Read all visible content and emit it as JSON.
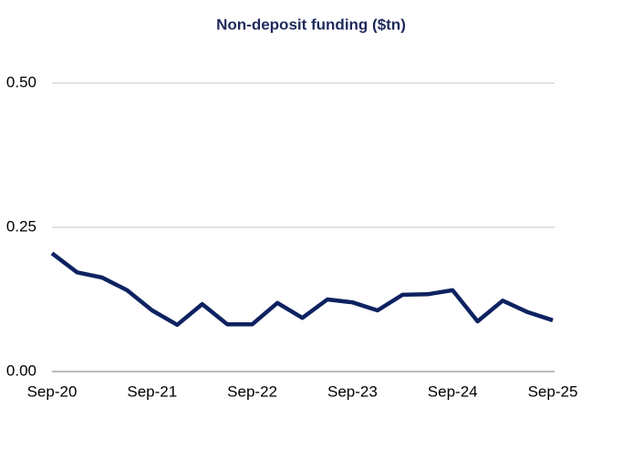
{
  "chart_data": {
    "type": "line",
    "title": "Non-deposit funding ($tn)",
    "categories": [
      "Sep-20",
      null,
      null,
      null,
      "Sep-21",
      null,
      null,
      null,
      "Sep-22",
      null,
      null,
      null,
      "Sep-23",
      null,
      null,
      null,
      "Sep-24",
      null,
      null,
      null,
      "Sep-25"
    ],
    "series": [
      {
        "color": "#0d2260",
        "values": [
          0.205,
          0.172,
          0.163,
          0.141,
          0.106,
          0.081,
          0.117,
          0.082,
          0.082,
          0.119,
          0.093,
          0.125,
          0.12,
          0.106,
          0.133,
          0.134,
          0.141,
          0.087,
          0.123,
          0.103,
          0.089
        ]
      }
    ],
    "ylim": [
      0,
      0.5
    ],
    "yticks": [
      {
        "value": 0,
        "label": "0.00"
      },
      {
        "value": 0.25,
        "label": "0.25"
      },
      {
        "value": 0.5,
        "label": "0.50"
      }
    ],
    "grid": true
  }
}
